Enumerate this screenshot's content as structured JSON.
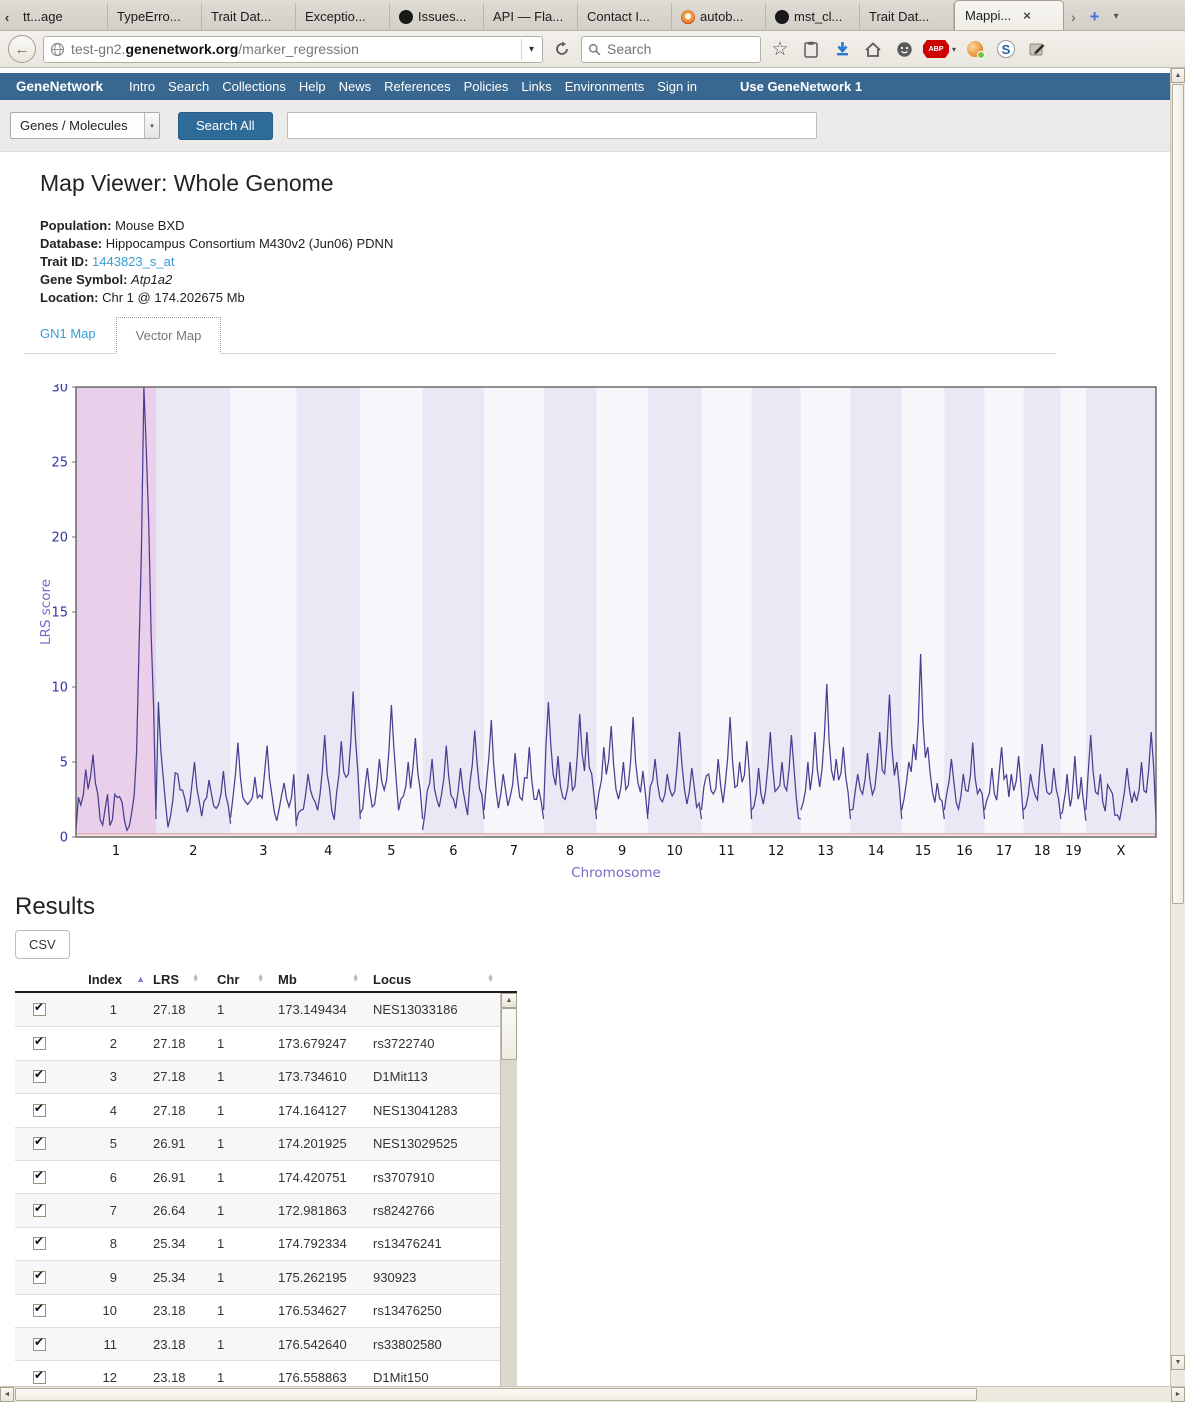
{
  "browser": {
    "tab_scroll_left": "‹",
    "tabs": [
      {
        "label": "tt...age",
        "icon": ""
      },
      {
        "label": "TypeErro...",
        "icon": ""
      },
      {
        "label": "Trait Dat...",
        "icon": ""
      },
      {
        "label": "Exceptio...",
        "icon": ""
      },
      {
        "label": "Issues...",
        "icon": "github"
      },
      {
        "label": "API — Fla...",
        "icon": ""
      },
      {
        "label": "Contact I...",
        "icon": ""
      },
      {
        "label": "autob...",
        "icon": "firefox"
      },
      {
        "label": "mst_cl...",
        "icon": "github"
      },
      {
        "label": "Trait Dat...",
        "icon": ""
      },
      {
        "label": "Mappi...",
        "icon": "",
        "active": true,
        "close": "×"
      }
    ],
    "tab_overflow": "›",
    "new_tab": "+",
    "tab_dropdown": "▾",
    "back": "←",
    "url": {
      "prefix": "test-gn2.",
      "domain": "genenetwork.org",
      "path": "/marker_regression",
      "dropdown": "▾"
    },
    "search_placeholder": "Search",
    "adblock_label": "ABP",
    "session_label": "S"
  },
  "nav": {
    "brand": "GeneNetwork",
    "items": [
      "Intro",
      "Search",
      "Collections",
      "Help",
      "News",
      "References",
      "Policies",
      "Links",
      "Environments",
      "Sign in"
    ],
    "right": "Use GeneNetwork 1"
  },
  "search_bar": {
    "category": "Genes / Molecules",
    "category_dropdown": "▾",
    "button": "Search All",
    "input_value": ""
  },
  "page": {
    "title": "Map Viewer: Whole Genome",
    "info": [
      {
        "label": "Population:",
        "value": "Mouse BXD",
        "style": "plain"
      },
      {
        "label": "Database:",
        "value": "Hippocampus Consortium M430v2 (Jun06) PDNN",
        "style": "plain"
      },
      {
        "label": "Trait ID:",
        "value": "1443823_s_at",
        "style": "link"
      },
      {
        "label": "Gene Symbol:",
        "value": "Atp1a2",
        "style": "italic"
      },
      {
        "label": "Location:",
        "value": "Chr 1 @ 174.202675 Mb",
        "style": "plain"
      }
    ],
    "map_tabs": [
      {
        "label": "GN1 Map",
        "active": false
      },
      {
        "label": "Vector Map",
        "active": true
      }
    ]
  },
  "chart_data": {
    "type": "line",
    "title": "",
    "xlabel": "Chromosome",
    "ylabel": "LRS score",
    "ylim": [
      0,
      30
    ],
    "yticks": [
      0,
      5,
      10,
      15,
      20,
      25,
      30
    ],
    "grid": false,
    "legend": "none",
    "line_color": "#4a3e91",
    "axis_label_color": "#7a68c8",
    "ytick_color": "#3333aa",
    "xtick_color": "#111111",
    "border_color": "#555555",
    "band_colors": {
      "highlight": "#e9cfe9",
      "even": "#e9e9f6",
      "odd": "#f6f6fb"
    },
    "baseline_strip": {
      "fill": "#f8e4e4",
      "line": "#d6a3a3"
    },
    "note": "Genome-wide LRS scan; chr1 peak at ~174 Mb (Atp1a2 locus) reaches top of scale; peaks below are estimated [position_fraction, LRS].",
    "chromosomes": [
      {
        "label": "1",
        "length": 195,
        "band": "highlight",
        "peaks": [
          [
            0.12,
            4.5
          ],
          [
            0.2,
            5.5
          ],
          [
            0.5,
            2.5
          ],
          [
            0.83,
            13
          ],
          [
            0.855,
            30
          ],
          [
            0.87,
            25.8
          ],
          [
            0.882,
            22.8
          ],
          [
            0.895,
            21
          ],
          [
            0.91,
            19
          ],
          [
            0.93,
            6
          ]
        ]
      },
      {
        "label": "2",
        "length": 182,
        "band": "even",
        "peaks": [
          [
            0.04,
            9
          ],
          [
            0.3,
            4.2
          ],
          [
            0.5,
            5
          ],
          [
            0.72,
            3.8
          ],
          [
            0.9,
            4.4
          ]
        ]
      },
      {
        "label": "3",
        "length": 160,
        "band": "odd",
        "peaks": [
          [
            0.12,
            6.3
          ],
          [
            0.38,
            4
          ],
          [
            0.56,
            6.1
          ],
          [
            0.8,
            3.6
          ]
        ]
      },
      {
        "label": "4",
        "length": 156,
        "band": "even",
        "peaks": [
          [
            0.18,
            4.2
          ],
          [
            0.45,
            6.8
          ],
          [
            0.72,
            6.4
          ],
          [
            0.88,
            9.7
          ]
        ]
      },
      {
        "label": "5",
        "length": 152,
        "band": "odd",
        "peaks": [
          [
            0.12,
            4.6
          ],
          [
            0.32,
            5.2
          ],
          [
            0.5,
            8.8
          ],
          [
            0.75,
            5
          ],
          [
            0.9,
            6.6
          ]
        ]
      },
      {
        "label": "6",
        "length": 150,
        "band": "even",
        "peaks": [
          [
            0.15,
            5.2
          ],
          [
            0.4,
            6.1
          ],
          [
            0.62,
            4.6
          ],
          [
            0.85,
            7.1
          ]
        ]
      },
      {
        "label": "7",
        "length": 145,
        "band": "odd",
        "peaks": [
          [
            0.1,
            7.8
          ],
          [
            0.32,
            4.2
          ],
          [
            0.52,
            5.6
          ],
          [
            0.74,
            6
          ],
          [
            0.9,
            3.2
          ]
        ]
      },
      {
        "label": "8",
        "length": 129,
        "band": "even",
        "peaks": [
          [
            0.1,
            9
          ],
          [
            0.28,
            5.4
          ],
          [
            0.48,
            5
          ],
          [
            0.66,
            8.2
          ],
          [
            0.8,
            7
          ],
          [
            0.92,
            4.2
          ]
        ]
      },
      {
        "label": "9",
        "length": 125,
        "band": "odd",
        "peaks": [
          [
            0.12,
            6
          ],
          [
            0.3,
            7.4
          ],
          [
            0.52,
            5
          ],
          [
            0.7,
            8
          ],
          [
            0.9,
            4.4
          ]
        ]
      },
      {
        "label": "10",
        "length": 131,
        "band": "even",
        "peaks": [
          [
            0.15,
            5.2
          ],
          [
            0.38,
            4.2
          ],
          [
            0.6,
            7
          ],
          [
            0.82,
            4.6
          ]
        ]
      },
      {
        "label": "11",
        "length": 122,
        "band": "odd",
        "peaks": [
          [
            0.12,
            4.2
          ],
          [
            0.32,
            5.2
          ],
          [
            0.55,
            8
          ],
          [
            0.75,
            5
          ],
          [
            0.9,
            6.4
          ]
        ]
      },
      {
        "label": "12",
        "length": 120,
        "band": "even",
        "peaks": [
          [
            0.15,
            4.6
          ],
          [
            0.4,
            7
          ],
          [
            0.62,
            5
          ],
          [
            0.82,
            6.8
          ]
        ]
      },
      {
        "label": "13",
        "length": 121,
        "band": "odd",
        "peaks": [
          [
            0.12,
            5
          ],
          [
            0.3,
            7
          ],
          [
            0.5,
            10.2
          ],
          [
            0.7,
            5.2
          ],
          [
            0.86,
            6
          ]
        ]
      },
      {
        "label": "14",
        "length": 125,
        "band": "even",
        "peaks": [
          [
            0.12,
            4.2
          ],
          [
            0.32,
            5.6
          ],
          [
            0.55,
            7
          ],
          [
            0.75,
            9.5
          ],
          [
            0.9,
            5
          ]
        ]
      },
      {
        "label": "15",
        "length": 104,
        "band": "odd",
        "peaks": [
          [
            0.15,
            5
          ],
          [
            0.3,
            6.2
          ],
          [
            0.45,
            12.2
          ],
          [
            0.62,
            6
          ],
          [
            0.82,
            3.6
          ]
        ]
      },
      {
        "label": "16",
        "length": 98,
        "band": "even",
        "peaks": [
          [
            0.2,
            5.2
          ],
          [
            0.48,
            4.2
          ],
          [
            0.7,
            6.3
          ],
          [
            0.9,
            3.2
          ]
        ]
      },
      {
        "label": "17",
        "length": 95,
        "band": "odd",
        "peaks": [
          [
            0.18,
            4.6
          ],
          [
            0.42,
            6
          ],
          [
            0.66,
            4.2
          ],
          [
            0.85,
            5.4
          ]
        ]
      },
      {
        "label": "18",
        "length": 91,
        "band": "even",
        "peaks": [
          [
            0.2,
            4.2
          ],
          [
            0.5,
            6.2
          ],
          [
            0.8,
            4.6
          ]
        ]
      },
      {
        "label": "19",
        "length": 61,
        "band": "odd",
        "peaks": [
          [
            0.25,
            4.2
          ],
          [
            0.55,
            5.4
          ],
          [
            0.8,
            4
          ]
        ]
      },
      {
        "label": "X",
        "length": 171,
        "band": "even",
        "peaks": [
          [
            0.08,
            6.8
          ],
          [
            0.35,
            3.2
          ],
          [
            0.6,
            4.6
          ],
          [
            0.8,
            5
          ],
          [
            0.93,
            7
          ]
        ]
      }
    ]
  },
  "results": {
    "heading": "Results",
    "csv_button": "CSV",
    "columns": [
      "Index",
      "LRS",
      "Chr",
      "Mb",
      "Locus"
    ],
    "sort_column": "Index",
    "sort_direction": "asc",
    "rows": [
      [
        "1",
        "27.18",
        "1",
        "173.149434",
        "NES13033186"
      ],
      [
        "2",
        "27.18",
        "1",
        "173.679247",
        "rs3722740"
      ],
      [
        "3",
        "27.18",
        "1",
        "173.734610",
        "D1Mit113"
      ],
      [
        "4",
        "27.18",
        "1",
        "174.164127",
        "NES13041283"
      ],
      [
        "5",
        "26.91",
        "1",
        "174.201925",
        "NES13029525"
      ],
      [
        "6",
        "26.91",
        "1",
        "174.420751",
        "rs3707910"
      ],
      [
        "7",
        "26.64",
        "1",
        "172.981863",
        "rs8242766"
      ],
      [
        "8",
        "25.34",
        "1",
        "174.792334",
        "rs13476241"
      ],
      [
        "9",
        "25.34",
        "1",
        "175.262195",
        "930923"
      ],
      [
        "10",
        "23.18",
        "1",
        "176.534627",
        "rs13476250"
      ],
      [
        "11",
        "23.18",
        "1",
        "176.542640",
        "rs33802580"
      ],
      [
        "12",
        "23.18",
        "1",
        "176.558863",
        "D1Mit150"
      ]
    ],
    "checkbox_mark": "✔"
  }
}
